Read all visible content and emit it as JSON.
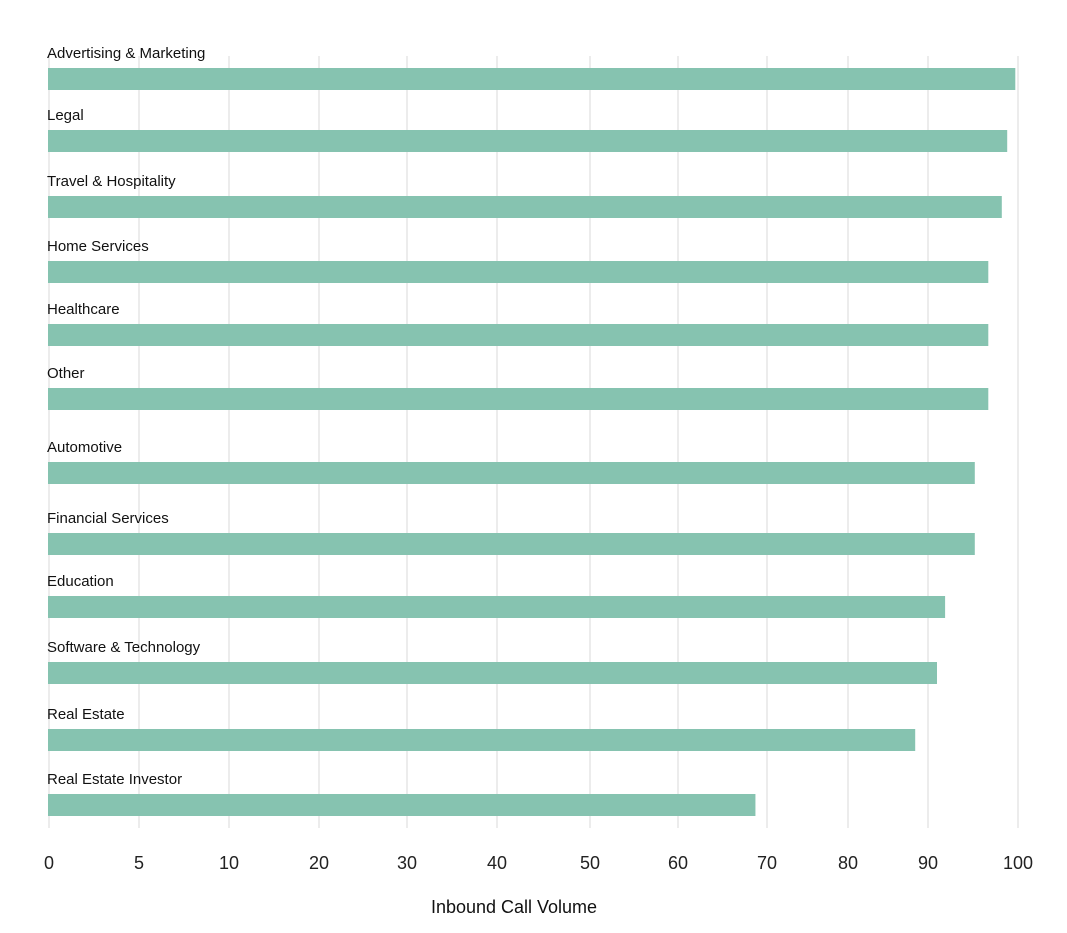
{
  "chart_data": {
    "type": "bar",
    "orientation": "horizontal",
    "categories": [
      "Advertising & Marketing",
      "Legal",
      "Travel & Hospitality",
      "Home Services",
      "Healthcare",
      "Other",
      "Automotive",
      "Financial Services",
      "Education",
      "Software & Technology",
      "Real Estate",
      "Real Estate Investor"
    ],
    "values": [
      99.7,
      98.8,
      98.2,
      96.7,
      96.7,
      96.7,
      95.2,
      95.2,
      91.9,
      91.0,
      88.4,
      68.7
    ],
    "bar_color": "#86c3b0",
    "xlabel": "Inbound Call Volume",
    "ylabel": "",
    "title": "",
    "x_ticks": [
      "0",
      "5",
      "10",
      "20",
      "30",
      "40",
      "50",
      "60",
      "70",
      "80",
      "90",
      "100"
    ],
    "grid": true,
    "legend": "none"
  }
}
